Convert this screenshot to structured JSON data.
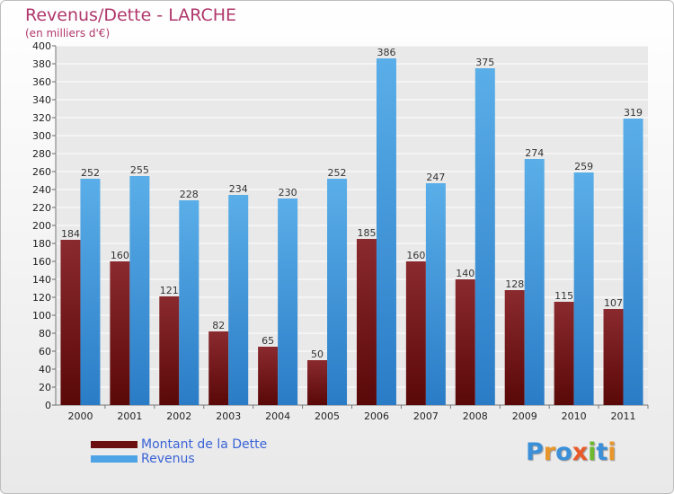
{
  "title": "Revenus/Dette - LARCHE",
  "subtitle": "(en milliers d'€)",
  "colors": {
    "dette_top": "#8a2a2e",
    "dette_bottom": "#5a0808",
    "revenus_top": "#5aaee8",
    "revenus_bottom": "#2a7cc6",
    "title": "#b0376b",
    "legend_text": "#3a63d6"
  },
  "legend": [
    {
      "label": "Montant de la Dette",
      "color": "#6a1010"
    },
    {
      "label": "Revenus",
      "color": "#4ea3e4"
    }
  ],
  "brand": {
    "text": "Proxiti",
    "letter_colors": [
      "#3a8fd8",
      "#e8962a",
      "#3a8fd8",
      "#e85a2a",
      "#6cb92e",
      "#3a8fd8",
      "#e8962a"
    ]
  },
  "chart_data": {
    "type": "bar",
    "categories": [
      "2000",
      "2001",
      "2002",
      "2003",
      "2004",
      "2005",
      "2006",
      "2007",
      "2008",
      "2009",
      "2010",
      "2011"
    ],
    "series": [
      {
        "name": "Montant de la Dette",
        "values": [
          184,
          160,
          121,
          82,
          65,
          50,
          185,
          160,
          140,
          128,
          115,
          107
        ]
      },
      {
        "name": "Revenus",
        "values": [
          252,
          255,
          228,
          234,
          230,
          252,
          386,
          247,
          375,
          274,
          259,
          319
        ]
      }
    ],
    "ylim": [
      0,
      400
    ],
    "ytick_step": 20,
    "grid": true
  }
}
